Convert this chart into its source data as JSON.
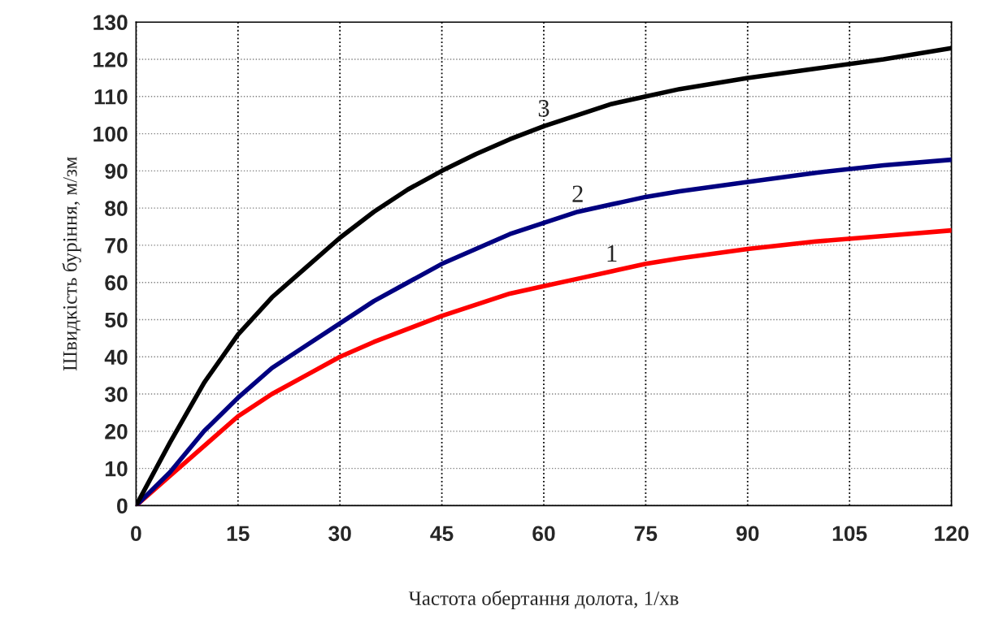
{
  "chart_data": {
    "type": "line",
    "xlabel": "Частота обертання долота, 1/хв",
    "ylabel": "Швидкість буріння, м/зм",
    "x": [
      0,
      5,
      10,
      15,
      20,
      25,
      30,
      35,
      40,
      45,
      50,
      55,
      60,
      65,
      70,
      75,
      80,
      90,
      100,
      110,
      120
    ],
    "series": [
      {
        "name": "1",
        "color": "#ff0000",
        "values": [
          0,
          8,
          16,
          24,
          30,
          35,
          40,
          44,
          47.5,
          51,
          54,
          57,
          59,
          61,
          63,
          65,
          66.5,
          69,
          71,
          72.5,
          74
        ]
      },
      {
        "name": "2",
        "color": "#000080",
        "values": [
          0,
          9,
          20,
          29,
          37,
          43,
          49,
          55,
          60,
          65,
          69,
          73,
          76,
          79,
          81,
          83,
          84.5,
          87,
          89.5,
          91.5,
          93
        ]
      },
      {
        "name": "3",
        "color": "#000000",
        "values": [
          0,
          17,
          33,
          46,
          56,
          64,
          72,
          79,
          85,
          90,
          94.5,
          98.5,
          102,
          105,
          108,
          110,
          112,
          115,
          117.5,
          120,
          123
        ]
      }
    ],
    "xlim": [
      0,
      120
    ],
    "xticks": [
      0,
      15,
      30,
      45,
      60,
      75,
      90,
      105,
      120
    ],
    "ylim": [
      0,
      130
    ],
    "yticks": [
      0,
      10,
      20,
      30,
      40,
      50,
      60,
      70,
      80,
      90,
      100,
      110,
      120,
      130
    ],
    "grid": true,
    "marker": "none",
    "line_style": "solid"
  }
}
